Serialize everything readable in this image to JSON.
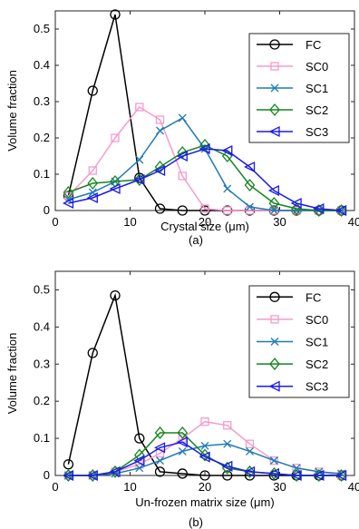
{
  "chart_data": [
    {
      "type": "line",
      "panel_label": "(a)",
      "xlabel": "Crystal size (μm)",
      "ylabel": "Volume fraction",
      "xlim": [
        0,
        40
      ],
      "ylim": [
        0,
        0.55
      ],
      "xticks": [
        0,
        10,
        20,
        30,
        40
      ],
      "yticks": [
        0,
        0.1,
        0.2,
        0.3,
        0.4,
        0.5
      ],
      "legend_placement": "top-right",
      "x": [
        1.75,
        5.0,
        8.0,
        11.25,
        14.0,
        17.0,
        20.0,
        23.0,
        26.0,
        29.25,
        32.25,
        35.25,
        38.25
      ],
      "series": [
        {
          "name": "FC",
          "color": "#000000",
          "marker": "circle",
          "values": [
            0.04,
            0.33,
            0.54,
            0.09,
            0.005,
            0.0,
            0.0,
            0.0,
            0.0,
            0.0,
            0.0,
            0.0,
            0.0
          ]
        },
        {
          "name": "SC0",
          "color": "#f59ccc",
          "marker": "square",
          "values": [
            0.04,
            0.11,
            0.2,
            0.285,
            0.25,
            0.095,
            0.005,
            0.0,
            0.0,
            0.0,
            0.0,
            0.0,
            0.0
          ]
        },
        {
          "name": "SC1",
          "color": "#1f7ab8",
          "marker": "x",
          "values": [
            0.03,
            0.05,
            0.08,
            0.14,
            0.22,
            0.255,
            0.17,
            0.06,
            0.01,
            0.0,
            0.0,
            0.0,
            0.0
          ]
        },
        {
          "name": "SC2",
          "color": "#13861f",
          "marker": "diamond",
          "values": [
            0.05,
            0.075,
            0.08,
            0.085,
            0.12,
            0.16,
            0.18,
            0.15,
            0.07,
            0.02,
            0.005,
            0.0,
            0.0
          ]
        },
        {
          "name": "SC3",
          "color": "#1a1ae8",
          "marker": "triangle-left",
          "values": [
            0.02,
            0.035,
            0.06,
            0.085,
            0.11,
            0.15,
            0.17,
            0.165,
            0.12,
            0.055,
            0.02,
            0.005,
            0.0
          ]
        }
      ]
    },
    {
      "type": "line",
      "panel_label": "(b)",
      "xlabel": "Un-frozen matrix size (μm)",
      "ylabel": "Volume fraction",
      "xlim": [
        0,
        40
      ],
      "ylim": [
        0,
        0.55
      ],
      "xticks": [
        0,
        10,
        20,
        30,
        40
      ],
      "yticks": [
        0,
        0.1,
        0.2,
        0.3,
        0.4,
        0.5
      ],
      "legend_placement": "top-right",
      "x": [
        1.75,
        5.0,
        8.0,
        11.25,
        14.0,
        17.0,
        20.0,
        23.0,
        26.0,
        29.25,
        32.25,
        35.25,
        38.25
      ],
      "series": [
        {
          "name": "FC",
          "color": "#000000",
          "marker": "circle",
          "values": [
            0.03,
            0.33,
            0.485,
            0.1,
            0.01,
            0.005,
            0.0,
            0.0,
            0.0,
            0.0,
            0.0,
            0.0,
            0.0
          ]
        },
        {
          "name": "SC0",
          "color": "#f59ccc",
          "marker": "square",
          "values": [
            0.0,
            0.0,
            0.01,
            0.03,
            0.06,
            0.1,
            0.145,
            0.135,
            0.085,
            0.04,
            0.02,
            0.01,
            0.0
          ]
        },
        {
          "name": "SC1",
          "color": "#1f7ab8",
          "marker": "x",
          "values": [
            0.0,
            0.0,
            0.005,
            0.02,
            0.04,
            0.065,
            0.08,
            0.085,
            0.065,
            0.04,
            0.02,
            0.01,
            0.005
          ]
        },
        {
          "name": "SC2",
          "color": "#13861f",
          "marker": "diamond",
          "values": [
            0.0,
            0.0,
            0.01,
            0.055,
            0.115,
            0.115,
            0.055,
            0.02,
            0.01,
            0.005,
            0.0,
            0.0,
            0.0
          ]
        },
        {
          "name": "SC3",
          "color": "#1a1ae8",
          "marker": "triangle-left",
          "values": [
            0.0,
            0.0,
            0.01,
            0.04,
            0.075,
            0.09,
            0.05,
            0.025,
            0.01,
            0.005,
            0.0,
            0.0,
            0.0
          ]
        }
      ]
    }
  ]
}
